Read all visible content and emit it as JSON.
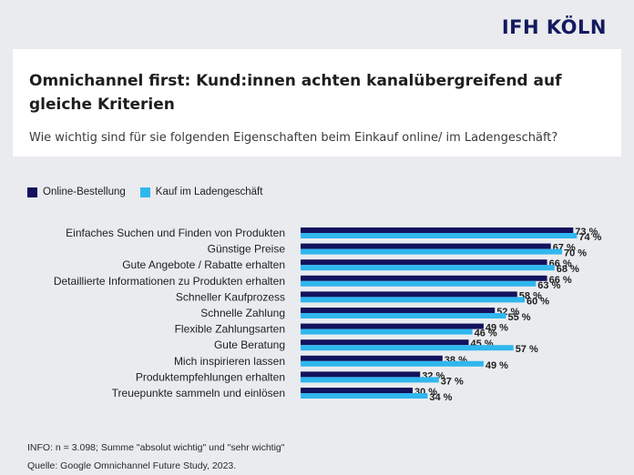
{
  "logo": "IFH KÖLN",
  "header": {
    "title": "Omnichannel first: Kund:innen achten kanalübergreifend auf gleiche Kriterien",
    "subtitle": "Wie wichtig sind für sie folgenden Eigenschaften beim Einkauf online/ im Ladengeschäft?"
  },
  "footer": {
    "info": "INFO: n = 3.098; Summe \"absolut wichtig\" und \"sehr wichtig\"",
    "source": "Quelle: Google Omnichannel Future Study, 2023."
  },
  "colors": {
    "online": "#12125e",
    "store": "#2fb7ee"
  },
  "chart_data": {
    "type": "bar",
    "orientation": "horizontal",
    "title": "",
    "xlabel": "",
    "ylabel": "",
    "xlim": [
      0,
      100
    ],
    "value_suffix": " %",
    "legend_position": "top-left",
    "categories": [
      "Einfaches Suchen und Finden von Produkten",
      "Günstige Preise",
      "Gute Angebote / Rabatte erhalten",
      "Detaillierte Informationen zu Produkten erhalten",
      "Schneller Kaufprozess",
      "Schnelle Zahlung",
      "Flexible Zahlungsarten",
      "Gute Beratung",
      "Mich inspirieren lassen",
      "Produktempfehlungen erhalten",
      "Treuepunkte sammeln und einlösen"
    ],
    "series": [
      {
        "name": "Online-Bestellung",
        "values": [
          73,
          67,
          66,
          66,
          58,
          52,
          49,
          45,
          38,
          32,
          30
        ]
      },
      {
        "name": "Kauf im Ladengeschäft",
        "values": [
          74,
          70,
          68,
          63,
          60,
          55,
          46,
          57,
          49,
          37,
          34
        ]
      }
    ]
  }
}
